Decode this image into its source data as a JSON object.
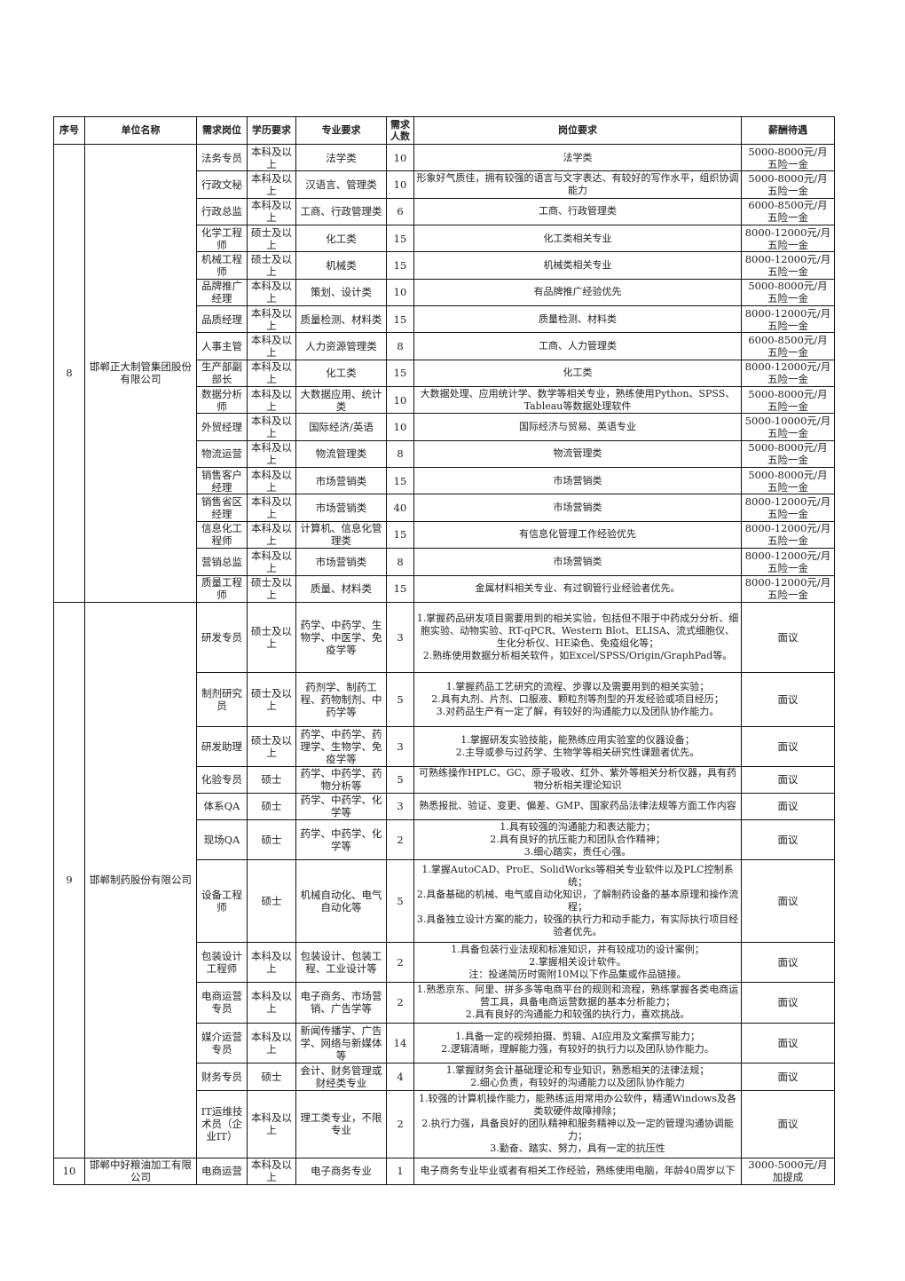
{
  "headers": [
    "序号",
    "单位名称",
    "需求岗位",
    "学历要求",
    "专业要求",
    "需求\n人数",
    "岗位要求",
    "薪酬待遇"
  ],
  "companies": [
    {
      "index": "8",
      "name": "邯郸正大制管集团股份有限公司",
      "positions": [
        {
          "title": "法务专员",
          "education": "本科及以上",
          "major": "法学类",
          "count": "10",
          "requirements": "法学类",
          "salary": "5000-8000元/月\n五险一金"
        },
        {
          "title": "行政文秘",
          "education": "本科及以上",
          "major": "汉语言、管理类",
          "count": "10",
          "requirements": "形象好气质佳，拥有较强的语言与文字表达、有较好的写作水平，组织协调能力",
          "salary": "5000-8000元/月\n五险一金"
        },
        {
          "title": "行政总监",
          "education": "本科及以上",
          "major": "工商、行政管理类",
          "count": "6",
          "requirements": "工商、行政管理类",
          "salary": "6000-8500元/月\n五险一金"
        },
        {
          "title": "化学工程师",
          "education": "硕士及以上",
          "major": "化工类",
          "count": "15",
          "requirements": "化工类相关专业",
          "salary": "8000-12000元/月\n五险一金"
        },
        {
          "title": "机械工程师",
          "education": "硕士及以上",
          "major": "机械类",
          "count": "15",
          "requirements": "机械类相关专业",
          "salary": "8000-12000元/月\n五险一金"
        },
        {
          "title": "品牌推广经理",
          "education": "本科及以上",
          "major": "策划、设计类",
          "count": "10",
          "requirements": "有品牌推广经验优先",
          "salary": "5000-8000元/月\n五险一金"
        },
        {
          "title": "品质经理",
          "education": "本科及以上",
          "major": "质量检测、材料类",
          "count": "15",
          "requirements": "质量检测、材料类",
          "salary": "8000-12000元/月\n五险一金"
        },
        {
          "title": "人事主管",
          "education": "本科及以上",
          "major": "人力资源管理类",
          "count": "8",
          "requirements": "工商、人力管理类",
          "salary": "6000-8500元/月\n五险一金"
        },
        {
          "title": "生产部副部长",
          "education": "本科及以上",
          "major": "化工类",
          "count": "15",
          "requirements": "化工类",
          "salary": "8000-12000元/月\n五险一金"
        },
        {
          "title": "数据分析师",
          "education": "本科及以上",
          "major": "大数据应用、统计类",
          "count": "10",
          "requirements": "大数据处理、应用统计学、数学等相关专业，熟练使用Python、SPSS、Tableau等数据处理软件",
          "salary": "5000-8000元/月\n五险一金"
        },
        {
          "title": "外贸经理",
          "education": "本科及以上",
          "major": "国际经济/英语",
          "count": "10",
          "requirements": "国际经济与贸易、英语专业",
          "salary": "5000-10000元/月\n五险一金"
        },
        {
          "title": "物流运营",
          "education": "本科及以上",
          "major": "物流管理类",
          "count": "8",
          "requirements": "物流管理类",
          "salary": "5000-8000元/月\n五险一金"
        },
        {
          "title": "销售客户经理",
          "education": "本科及以上",
          "major": "市场营销类",
          "count": "15",
          "requirements": "市场营销类",
          "salary": "5000-8000元/月\n五险一金"
        },
        {
          "title": "销售省区经理",
          "education": "本科及以上",
          "major": "市场营销类",
          "count": "40",
          "requirements": "市场营销类",
          "salary": "8000-12000元/月\n五险一金"
        },
        {
          "title": "信息化工程师",
          "education": "本科及以上",
          "major": "计算机、信息化管理类",
          "count": "15",
          "requirements": "有信息化管理工作经验优先",
          "salary": "8000-12000元/月\n五险一金"
        },
        {
          "title": "营销总监",
          "education": "本科及以上",
          "major": "市场营销类",
          "count": "8",
          "requirements": "市场营销类",
          "salary": "8000-12000元/月\n五险一金"
        },
        {
          "title": "质量工程师",
          "education": "硕士及以上",
          "major": "质量、材料类",
          "count": "15",
          "requirements": "金属材料相关专业、有过钢管行业经验者优先。",
          "salary": "8000-12000元/月\n五险一金"
        }
      ]
    },
    {
      "index": "9",
      "name": "邯郸制药股份有限公司",
      "positions": [
        {
          "title": "研发专员",
          "education": "硕士及以上",
          "major": "药学、中药学、生物学、中医学、免疫学等",
          "count": "3",
          "requirements": "1.掌握药品研发项目需要用到的相关实验，包括但不限于中药成分分析、细胞实验、动物实验、RT-qPCR、Western Blot、ELISA、流式细胞仪、生化分析仪、HE染色、免疫组化等；\n2.熟练使用数据分析相关软件，如Excel/SPSS/Origin/GraphPad等。",
          "salary": "面议"
        },
        {
          "title": "制剂研究员",
          "education": "硕士及以上",
          "major": "药剂学、制药工程、药物制剂、中药学等",
          "count": "5",
          "requirements": "1.掌握药品工艺研究的流程、步骤以及需要用到的相关实验；\n2.具有丸剂、片剂、口服液、颗粒剂等剂型的开发经验或项目经历；\n3.对药品生产有一定了解，有较好的沟通能力以及团队协作能力。",
          "salary": "面议"
        },
        {
          "title": "研发助理",
          "education": "硕士及以上",
          "major": "药学、中药学、药理学、生物学、免疫学等",
          "count": "3",
          "requirements": "1.掌握研发实验技能，能熟练应用实验室的仪器设备；\n2.主导或参与过药学、生物学等相关研究性课题者优先。",
          "salary": "面议"
        },
        {
          "title": "化验专员",
          "education": "硕士",
          "major": "药学、中药学、药物分析等",
          "count": "5",
          "requirements": "可熟练操作HPLC、GC、原子吸收、红外、紫外等相关分析仪器，具有药物分析相关理论知识",
          "salary": "面议"
        },
        {
          "title": "体系QA",
          "education": "硕士",
          "major": "药学、中药学、化学等",
          "count": "3",
          "requirements": "熟悉报批、验证、变更、偏差、GMP、国家药品法律法规等方面工作内容",
          "salary": "面议"
        },
        {
          "title": "现场QA",
          "education": "硕士",
          "major": "药学、中药学、化学等",
          "count": "2",
          "requirements": "1.具有较强的沟通能力和表达能力；\n2.具有良好的抗压能力和团队合作精神；\n3.细心踏实，责任心强。",
          "salary": "面议"
        },
        {
          "title": "设备工程师",
          "education": "硕士",
          "major": "机械自动化、电气自动化等",
          "count": "5",
          "requirements": "1.掌握AutoCAD、ProE、SolidWorks等相关专业软件以及PLC控制系统；\n2.具备基础的机械、电气或自动化知识，了解制药设备的基本原理和操作流程；\n3.具备独立设计方案的能力，较强的执行力和动手能力，有实际执行项目经验者优先。",
          "salary": "面议"
        },
        {
          "title": "包装设计工程师",
          "education": "本科及以上",
          "major": "包装设计、包装工程、工业设计等",
          "count": "2",
          "requirements": "1.具备包装行业法规和标准知识，并有较成功的设计案例；\n2.掌握相关设计软件。\n注：投递简历时需附10M以下作品集或作品链接。",
          "salary": "面议"
        },
        {
          "title": "电商运营专员",
          "education": "本科及以上",
          "major": "电子商务、市场营销、广告学等",
          "count": "2",
          "requirements": "1.熟悉京东、阿里、拼多多等电商平台的规则和流程，熟练掌握各类电商运营工具，具备电商运营数据的基本分析能力；\n2.具有良好的沟通能力和较强的执行力，喜欢挑战。",
          "salary": "面议"
        },
        {
          "title": "媒介运营专员",
          "education": "本科及以上",
          "major": "新闻传播学、广告学、网络与新媒体等",
          "count": "14",
          "requirements": "1.具备一定的视频拍摄、剪辑、AI应用及文案撰写能力；\n2.逻辑清晰，理解能力强，有较好的执行力以及团队协作能力。",
          "salary": "面议"
        },
        {
          "title": "财务专员",
          "education": "硕士",
          "major": "会计、财务管理或财经类专业",
          "count": "4",
          "requirements": "1.掌握财务会计基础理论和专业知识，熟悉相关的法律法规；\n2.细心负责，有较好的沟通能力以及团队协作能力",
          "salary": "面议"
        },
        {
          "title": "IT运维技术员（企业IT）",
          "education": "本科及以上",
          "major": "理工类专业，不限专业",
          "count": "2",
          "requirements": "1.较强的计算机操作能力，能熟练运用常用办公软件，精通Windows及各类软硬件故障排除；\n2.执行力强，具备良好的团队精神和服务精神以及一定的管理沟通协调能力；\n3.勤奋、踏实、努力，具有一定的抗压性",
          "salary": "面议"
        }
      ]
    },
    {
      "index": "10",
      "name": "邯郸中好粮油加工有限公司",
      "positions": [
        {
          "title": "电商运营",
          "education": "本科及以上",
          "major": "电子商务专业",
          "count": "1",
          "requirements": "电子商务专业毕业或者有相关工作经验，熟练使用电脑，年龄40周岁以下",
          "salary": "3000-5000元/月加提成"
        }
      ]
    }
  ]
}
